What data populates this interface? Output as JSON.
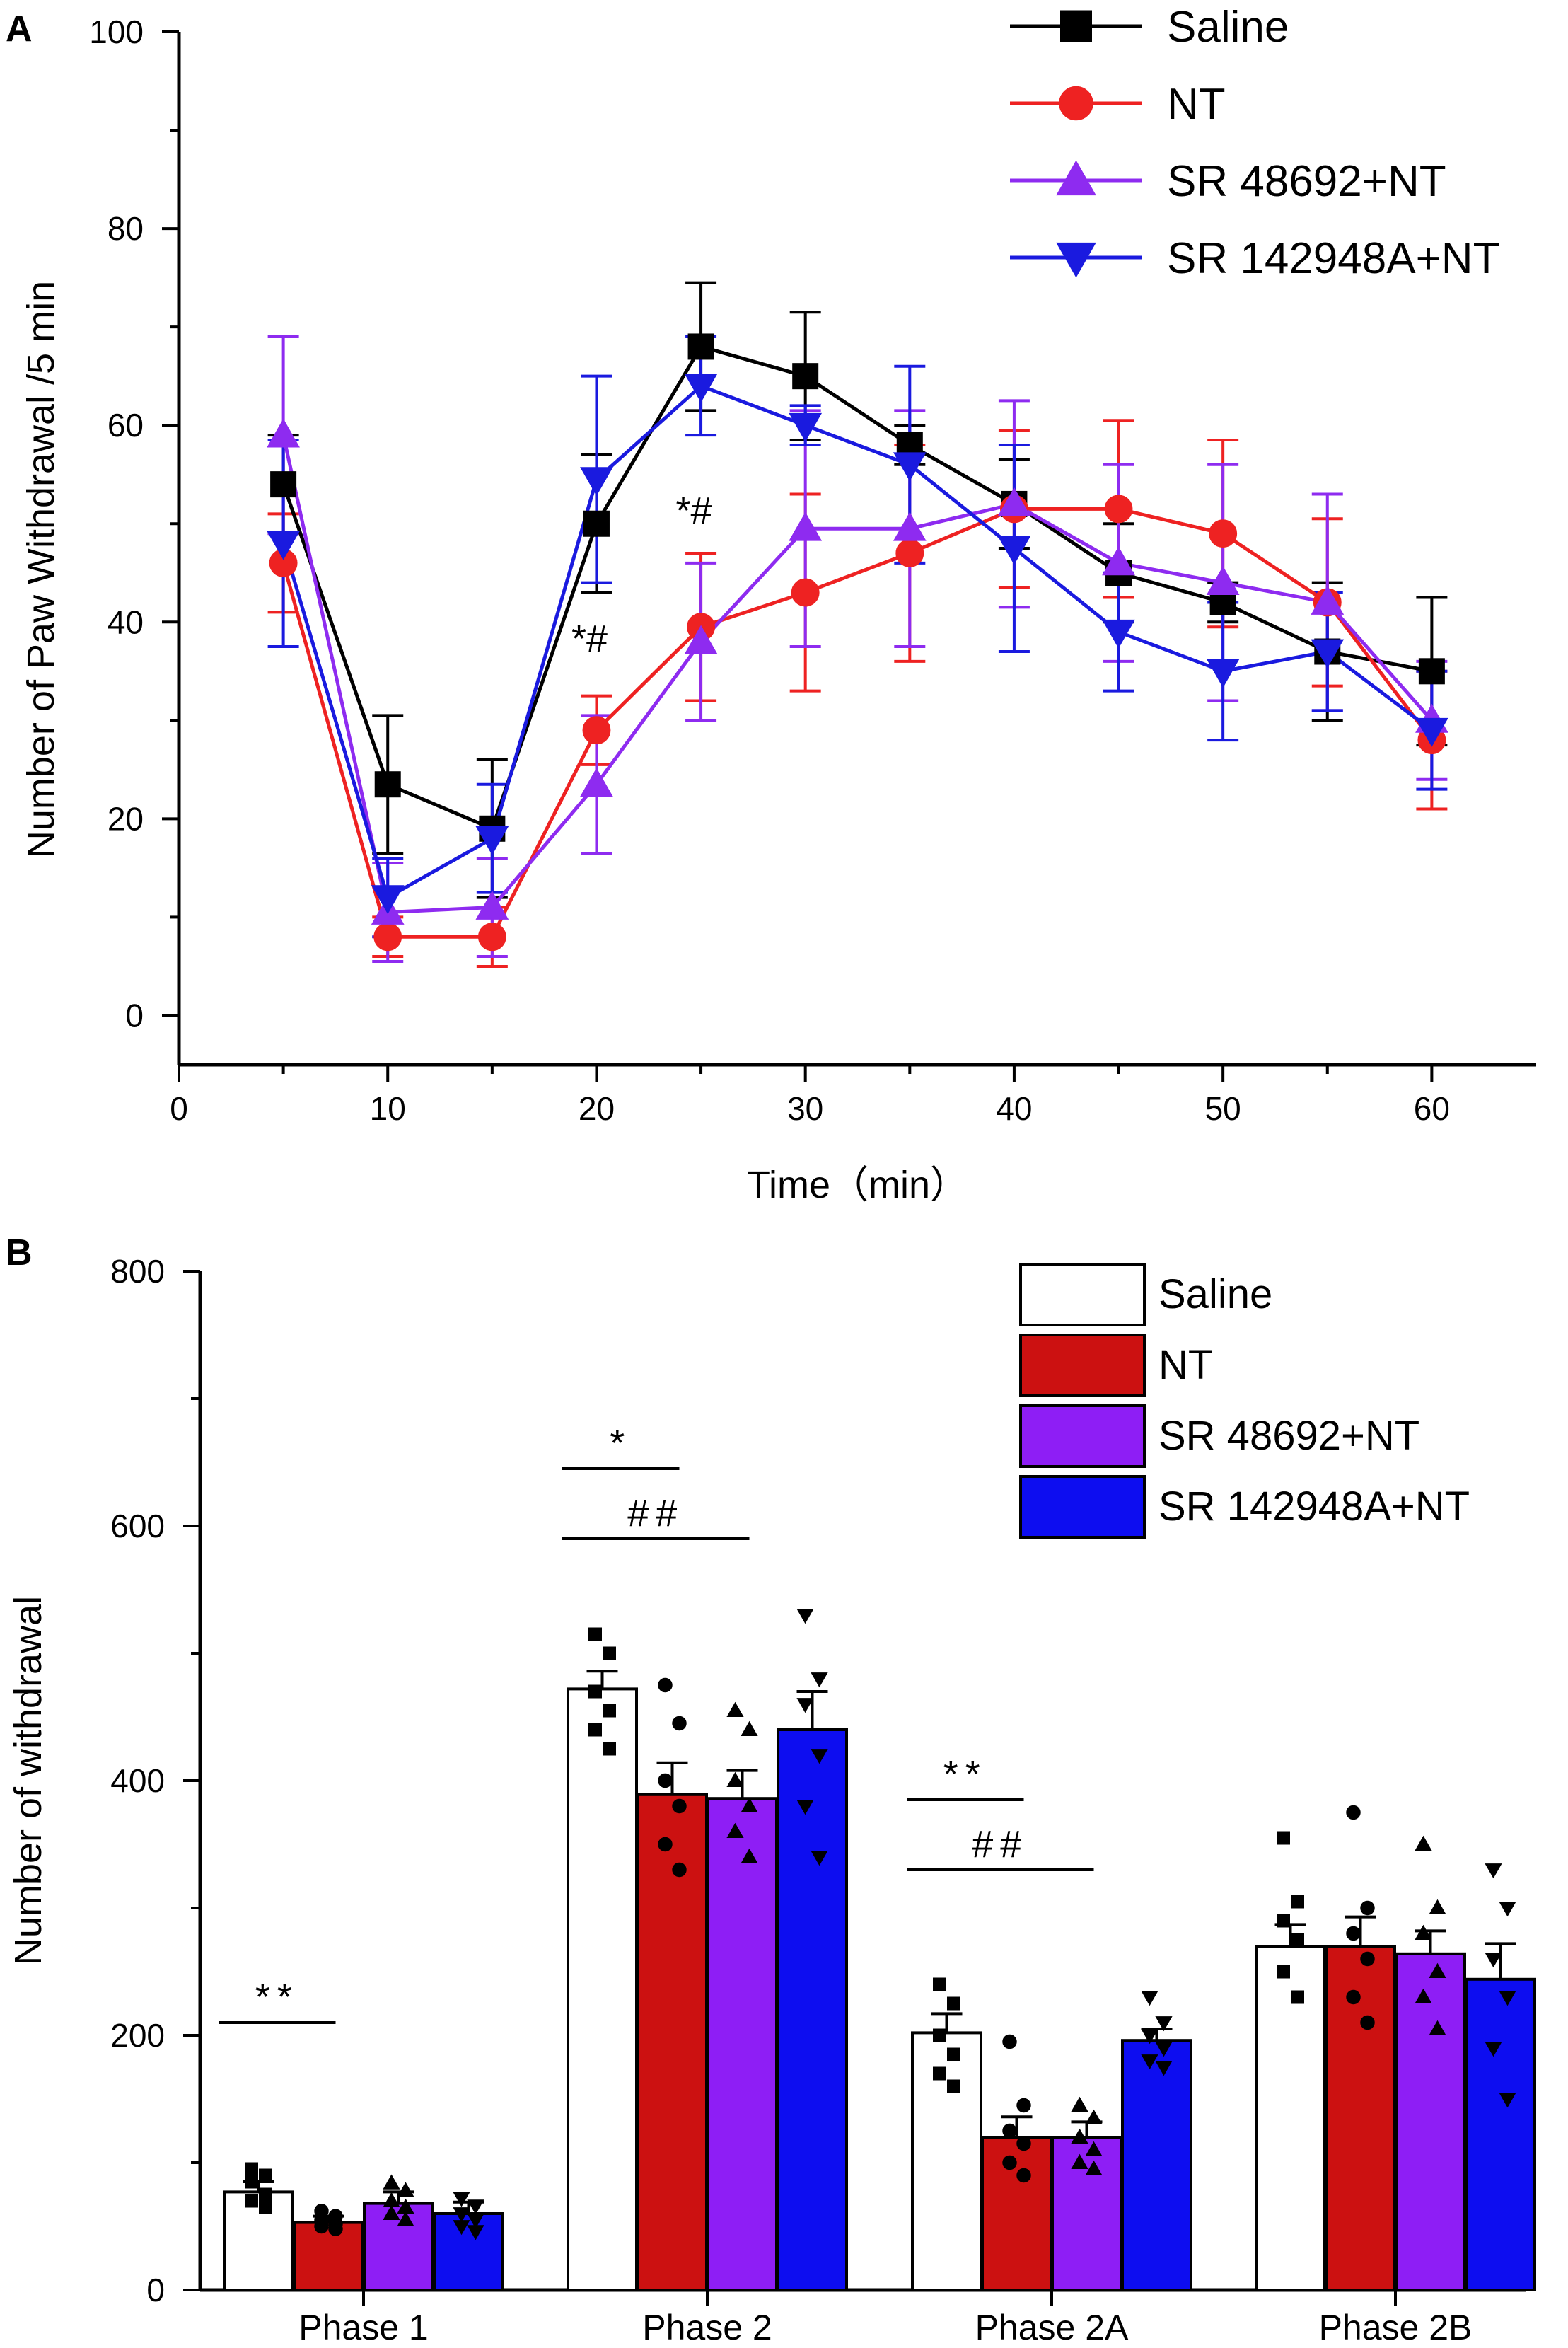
{
  "colors": {
    "saline": "#000000",
    "nt": "#ee2222",
    "sr48692": "#8e2bf0",
    "sr142948": "#1a1adf",
    "nt_bar": "#cc1111",
    "sr48692_bar": "#8e1ef5",
    "sr142948_bar": "#0d0df0",
    "saline_bar": "#ffffff"
  },
  "chart_data": [
    {
      "type": "line",
      "panel": "A",
      "xlabel": "Time（min）",
      "ylabel": "Number of Paw Withdrawal /5 min",
      "xlim": [
        0,
        65
      ],
      "ylim": [
        -5,
        100
      ],
      "xticks": [
        0,
        10,
        20,
        30,
        40,
        50,
        60
      ],
      "yticks": [
        0,
        20,
        40,
        60,
        80,
        100
      ],
      "x": [
        5,
        10,
        15,
        20,
        25,
        30,
        35,
        40,
        45,
        50,
        55,
        60
      ],
      "series": [
        {
          "name": "Saline",
          "marker": "square",
          "color": "#000000",
          "values": [
            54,
            23.5,
            19,
            50,
            68,
            65,
            58,
            52,
            45,
            42,
            37,
            35
          ],
          "errors": [
            5,
            7,
            7,
            7,
            6.5,
            6.5,
            2,
            4.5,
            5,
            2,
            7,
            7.5
          ]
        },
        {
          "name": "NT",
          "marker": "circle",
          "color": "#ee2222",
          "values": [
            46,
            8,
            8,
            29,
            39.5,
            43,
            47,
            51.5,
            51.5,
            49,
            42,
            28
          ],
          "errors": [
            5,
            2,
            3,
            3.5,
            7.5,
            10,
            11,
            8,
            9,
            9.5,
            8.5,
            7
          ]
        },
        {
          "name": "SR 48692+NT",
          "marker": "triangle-up",
          "color": "#8e2bf0",
          "values": [
            59,
            10.5,
            11,
            23.5,
            38,
            49.5,
            49.5,
            52,
            46,
            44,
            42,
            30
          ],
          "errors": [
            10,
            5,
            5,
            7,
            8,
            12,
            12,
            10.5,
            10,
            12,
            11,
            6
          ]
        },
        {
          "name": "SR 142948A+NT",
          "marker": "triangle-down",
          "color": "#1a1adf",
          "values": [
            48,
            12,
            18,
            54.5,
            64,
            60,
            56,
            47.5,
            39,
            35,
            37,
            29
          ],
          "errors": [
            10.5,
            4,
            5.5,
            10.5,
            5,
            2,
            10,
            10.5,
            6,
            7,
            6,
            6
          ]
        }
      ],
      "annotations": [
        {
          "text": "*#",
          "x": 20,
          "y": 37
        },
        {
          "text": "*#",
          "x": 25,
          "y": 50
        }
      ]
    },
    {
      "type": "bar",
      "panel": "B",
      "xlabel": "",
      "ylabel": "Number of withdrawal",
      "ylim": [
        0,
        800
      ],
      "yticks": [
        0,
        200,
        400,
        600,
        800
      ],
      "categories": [
        "Phase 1",
        "Phase 2",
        "Phase 2A",
        "Phase 2B"
      ],
      "series": [
        {
          "name": "Saline",
          "fill": "#ffffff",
          "marker": "square",
          "values": [
            77,
            472,
            202,
            270
          ],
          "errors": [
            8,
            14,
            15,
            17
          ],
          "points": [
            [
              95,
              90,
              85,
              75,
              70,
              65
            ],
            [
              515,
              500,
              470,
              455,
              440,
              425
            ],
            [
              240,
              225,
              200,
              185,
              170,
              160
            ],
            [
              355,
              305,
              290,
              275,
              250,
              230
            ]
          ]
        },
        {
          "name": "NT",
          "fill": "#cc1111",
          "marker": "circle",
          "values": [
            53,
            389,
            120,
            270
          ],
          "errors": [
            5,
            25,
            16,
            23
          ],
          "points": [
            [
              62,
              58,
              55,
              52,
              50,
              48
            ],
            [
              475,
              445,
              400,
              380,
              350,
              330
            ],
            [
              195,
              145,
              125,
              115,
              100,
              90
            ],
            [
              375,
              300,
              280,
              260,
              230,
              210
            ]
          ]
        },
        {
          "name": "SR 48692+NT",
          "fill": "#8e1ef5",
          "marker": "triangle-up",
          "values": [
            68,
            386,
            120,
            264
          ],
          "errors": [
            9,
            22,
            12,
            18
          ],
          "points": [
            [
              84,
              78,
              70,
              65,
              60,
              55
            ],
            [
              455,
              440,
              400,
              380,
              360,
              340
            ],
            [
              145,
              135,
              120,
              110,
              100,
              95
            ],
            [
              350,
              300,
              280,
              250,
              230,
              205
            ]
          ]
        },
        {
          "name": "SR 142948A+NT",
          "fill": "#0d0df0",
          "marker": "triangle-down",
          "values": [
            60,
            440,
            196,
            244
          ],
          "errors": [
            9,
            30,
            9,
            28
          ],
          "points": [
            [
              72,
              66,
              60,
              55,
              50,
              46
            ],
            [
              530,
              480,
              460,
              420,
              380,
              340
            ],
            [
              230,
              210,
              200,
              190,
              180,
              175
            ],
            [
              330,
              300,
              260,
              230,
              190,
              150
            ]
          ]
        }
      ],
      "significance": [
        {
          "text": "**",
          "category": "Phase 1",
          "from": "Saline",
          "to": "NT",
          "y": 210
        },
        {
          "text": "*",
          "category": "Phase 2",
          "from": "Saline",
          "to": "NT",
          "y": 645
        },
        {
          "text": "##",
          "category": "Phase 2",
          "from": "Saline",
          "to": "SR 48692+NT",
          "y": 590
        },
        {
          "text": "**",
          "category": "Phase 2A",
          "from": "Saline",
          "to": "NT",
          "y": 385
        },
        {
          "text": "##",
          "category": "Phase 2A",
          "from": "Saline",
          "to": "SR 48692+NT",
          "y": 330
        }
      ]
    }
  ]
}
